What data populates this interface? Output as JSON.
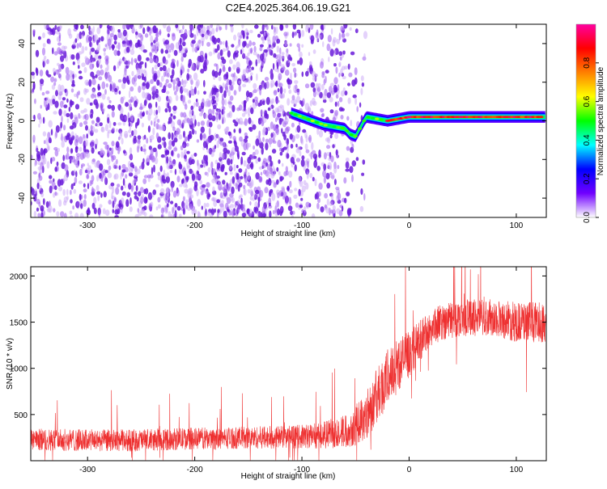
{
  "title": "C2E4.2025.364.06.19.G21",
  "chart_data": [
    {
      "type": "heatmap",
      "title": "C2E4.2025.364.06.19.G21",
      "xlabel": "Height of straight line (km)",
      "ylabel": "Frequency (Hz)",
      "xlim": [
        -353,
        128
      ],
      "ylim": [
        -50,
        50
      ],
      "xticks": [
        -300,
        -200,
        -100,
        0,
        100
      ],
      "yticks": [
        -40,
        -20,
        0,
        20,
        40
      ],
      "colorbar": {
        "label": "Normalized spectral amplitude",
        "range": [
          0,
          1
        ],
        "ticks": [
          0.0,
          0.2,
          0.4,
          0.6,
          0.8
        ],
        "tick_labels": [
          "0.0",
          "0.2",
          "0.4",
          "0.6",
          "0.8"
        ],
        "colors": [
          "#ffffff",
          "#7000ff",
          "#0000ff",
          "#00ffff",
          "#00ff00",
          "#ffff00",
          "#ff8000",
          "#ff0000",
          "#ff00a0"
        ]
      },
      "ridge": {
        "x": [
          -110,
          -100,
          -90,
          -80,
          -70,
          -60,
          -55,
          -50,
          -45,
          -40,
          -30,
          -20,
          -10,
          0,
          20,
          40,
          60,
          80,
          100,
          120,
          128
        ],
        "y": [
          4,
          2,
          0,
          -2,
          -3,
          -4,
          -7,
          -8,
          -3,
          2,
          1,
          0,
          1,
          2,
          2,
          2,
          2,
          2,
          2,
          2,
          2
        ]
      },
      "noise_region_x": [
        -353,
        -40
      ],
      "signal_region_x": [
        -40,
        128
      ]
    },
    {
      "type": "line",
      "xlabel": "Height of straight line (km)",
      "ylabel": "SNR (10 * v/v)",
      "xlim": [
        -353,
        128
      ],
      "ylim": [
        0,
        2100
      ],
      "xticks": [
        -300,
        -200,
        -100,
        0,
        100
      ],
      "yticks": [
        500,
        1000,
        1500,
        2000
      ],
      "color": "#ee3030",
      "envelope": {
        "x": [
          -353,
          -300,
          -250,
          -200,
          -150,
          -100,
          -80,
          -60,
          -50,
          -40,
          -30,
          -20,
          -10,
          0,
          10,
          20,
          30,
          50,
          80,
          100,
          128
        ],
        "mean": [
          230,
          220,
          220,
          240,
          250,
          260,
          280,
          320,
          380,
          500,
          700,
          900,
          1050,
          1150,
          1300,
          1430,
          1500,
          1550,
          1550,
          1500,
          1500
        ],
        "spread": [
          120,
          120,
          120,
          120,
          120,
          130,
          150,
          180,
          220,
          260,
          300,
          320,
          300,
          250,
          220,
          200,
          200,
          200,
          200,
          220,
          220
        ]
      }
    }
  ]
}
